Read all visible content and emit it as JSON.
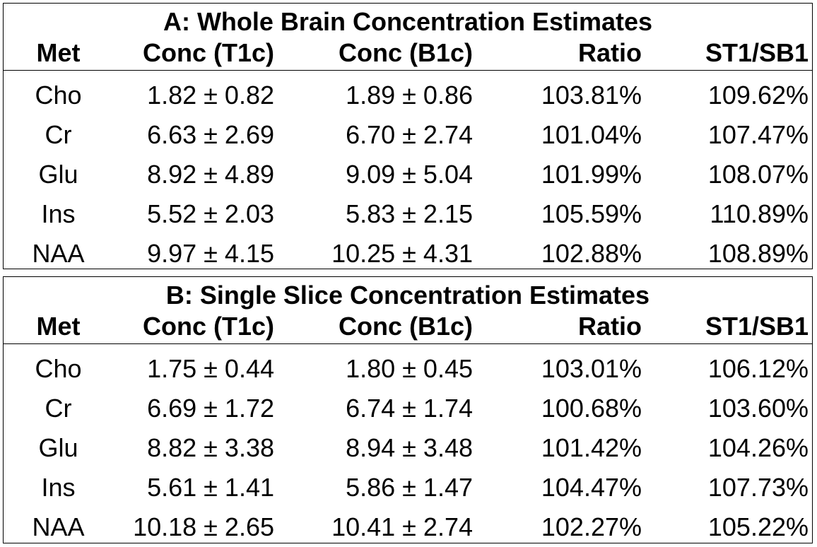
{
  "panels": [
    {
      "title": "A: Whole Brain Concentration Estimates",
      "headers": {
        "met": "Met",
        "t1c": "Conc (T1c)",
        "b1c": "Conc (B1c)",
        "ratio": "Ratio",
        "st1sb1": "ST1/SB1"
      },
      "rows": [
        {
          "met": "Cho",
          "t1c": "1.82 ± 0.82",
          "b1c": "1.89 ± 0.86",
          "ratio": "103.81%",
          "st1sb1": "109.62%"
        },
        {
          "met": "Cr",
          "t1c": "6.63 ± 2.69",
          "b1c": "6.70 ± 2.74",
          "ratio": "101.04%",
          "st1sb1": "107.47%"
        },
        {
          "met": "Glu",
          "t1c": "8.92 ± 4.89",
          "b1c": "9.09 ± 5.04",
          "ratio": "101.99%",
          "st1sb1": "108.07%"
        },
        {
          "met": "Ins",
          "t1c": "5.52 ± 2.03",
          "b1c": "5.83 ± 2.15",
          "ratio": "105.59%",
          "st1sb1": "110.89%"
        },
        {
          "met": "NAA",
          "t1c": "9.97 ± 4.15",
          "b1c": "10.25 ± 4.31",
          "ratio": "102.88%",
          "st1sb1": "108.89%"
        }
      ]
    },
    {
      "title": "B: Single Slice Concentration Estimates",
      "headers": {
        "met": "Met",
        "t1c": "Conc (T1c)",
        "b1c": "Conc (B1c)",
        "ratio": "Ratio",
        "st1sb1": "ST1/SB1"
      },
      "rows": [
        {
          "met": "Cho",
          "t1c": "1.75 ± 0.44",
          "b1c": "1.80 ± 0.45",
          "ratio": "103.01%",
          "st1sb1": "106.12%"
        },
        {
          "met": "Cr",
          "t1c": "6.69 ± 1.72",
          "b1c": "6.74 ± 1.74",
          "ratio": "100.68%",
          "st1sb1": "103.60%"
        },
        {
          "met": "Glu",
          "t1c": "8.82 ± 3.38",
          "b1c": "8.94 ± 3.48",
          "ratio": "101.42%",
          "st1sb1": "104.26%"
        },
        {
          "met": "Ins",
          "t1c": "5.61 ± 1.41",
          "b1c": "5.86 ± 1.47",
          "ratio": "104.47%",
          "st1sb1": "107.73%"
        },
        {
          "met": "NAA",
          "t1c": "10.18 ± 2.65",
          "b1c": "10.41 ± 2.74",
          "ratio": "102.27%",
          "st1sb1": "105.22%"
        }
      ]
    }
  ]
}
